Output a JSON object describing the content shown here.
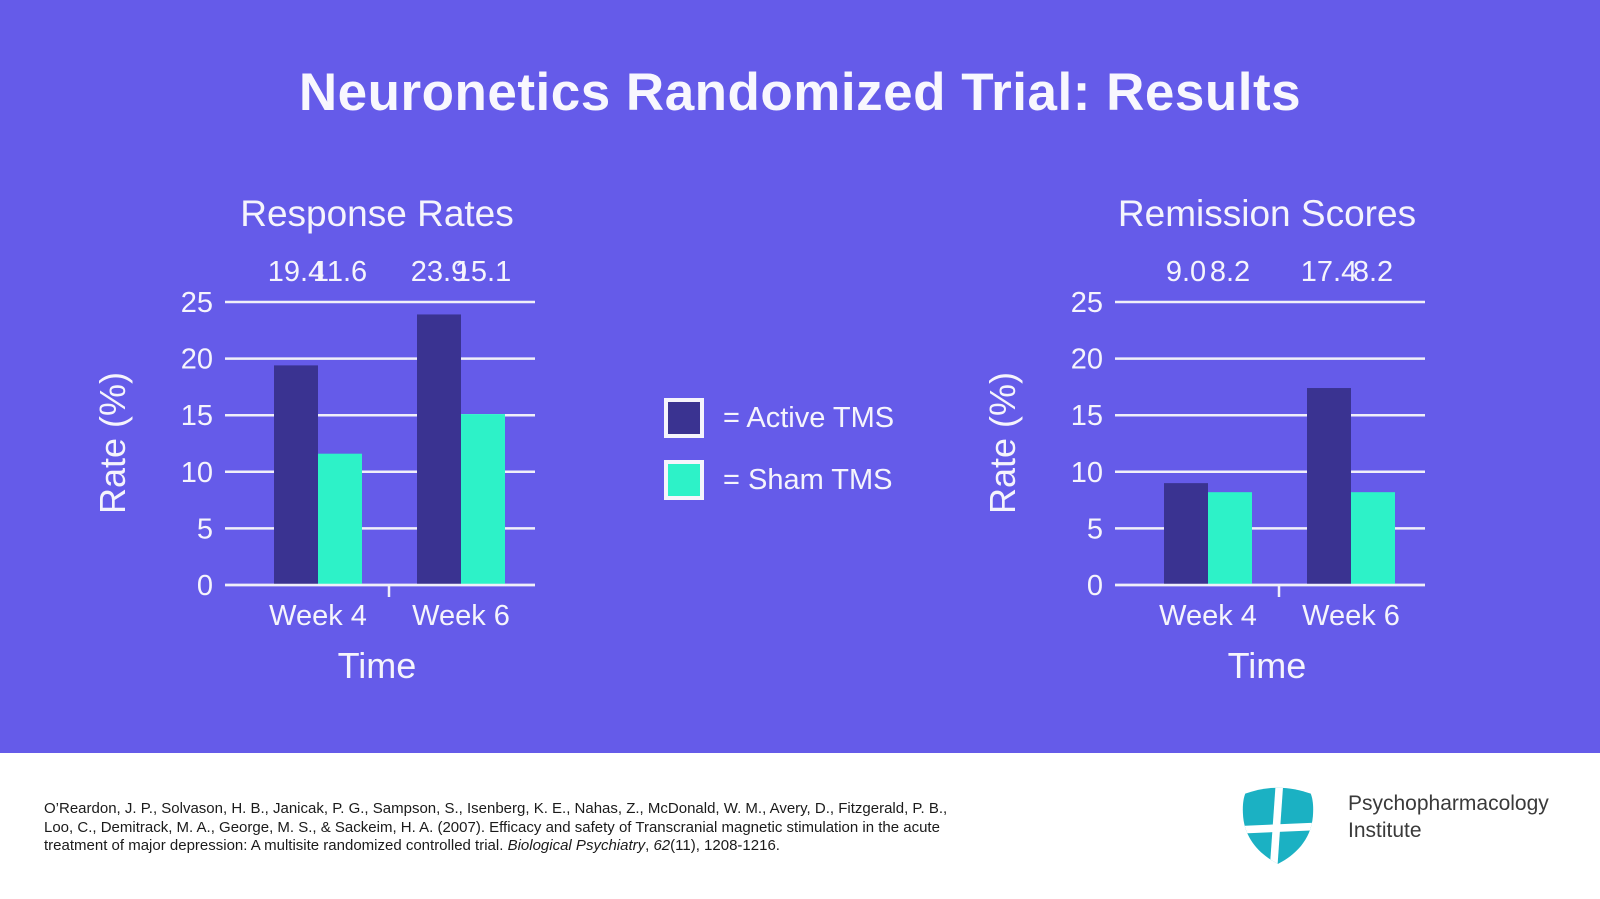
{
  "title": "Neuronetics Randomized Trial: Results",
  "colors": {
    "background": "#655BE9",
    "active_tms": "#3A3391",
    "sham_tms": "#2DF2C8",
    "chart_text": "#F5F4FC",
    "gridline": "#F0EFF9",
    "footer_background": "#FFFFFF",
    "citation_text": "#1B1B1B",
    "logo_teal": "#1BB1C3",
    "logo_text": "#3A3A3A"
  },
  "legend": {
    "items": [
      {
        "label": "= Active TMS",
        "swatch": "active_tms"
      },
      {
        "label": "= Sham TMS",
        "swatch": "sham_tms"
      }
    ]
  },
  "chart_data": [
    {
      "type": "bar",
      "title": "Response Rates",
      "xlabel": "Time",
      "ylabel": "Rate (%)",
      "categories": [
        "Week 4",
        "Week 6"
      ],
      "series": [
        {
          "name": "Active TMS",
          "values": [
            19.4,
            23.9
          ]
        },
        {
          "name": "Sham TMS",
          "values": [
            11.6,
            15.1
          ]
        }
      ],
      "value_labels": [
        "19.4",
        "11.6",
        "23.9",
        "15.1"
      ],
      "ylim": [
        0,
        25
      ],
      "yticks": [
        0,
        5,
        10,
        15,
        20,
        25
      ],
      "grid": true,
      "legend_position": "shared-center"
    },
    {
      "type": "bar",
      "title": "Remission Scores",
      "xlabel": "Time",
      "ylabel": "Rate (%)",
      "categories": [
        "Week 4",
        "Week 6"
      ],
      "series": [
        {
          "name": "Active TMS",
          "values": [
            9.0,
            17.4
          ]
        },
        {
          "name": "Sham TMS",
          "values": [
            8.2,
            8.2
          ]
        }
      ],
      "value_labels": [
        "9.0",
        "8.2",
        "17.4",
        "8.2"
      ],
      "ylim": [
        0,
        25
      ],
      "yticks": [
        0,
        5,
        10,
        15,
        20,
        25
      ],
      "grid": true,
      "legend_position": "shared-center"
    }
  ],
  "footer": {
    "citation_line1": "O’Reardon, J. P., Solvason, H. B., Janicak, P. G., Sampson, S., Isenberg, K. E., Nahas, Z., McDonald, W. M., Avery, D., Fitzgerald, P. B.,",
    "citation_line2": "Loo, C., Demitrack, M. A., George, M. S., & Sackeim, H. A. (2007). Efficacy and safety of Transcranial magnetic stimulation in the acute",
    "citation_line3_pre": "treatment of major depression: A multisite randomized controlled trial. ",
    "citation_line3_journal": "Biological Psychiatry",
    "citation_line3_sep": ", ",
    "citation_line3_volume": "62",
    "citation_line3_post": "(11), 1208-1216.",
    "logo_line1": "Psychopharmacology",
    "logo_line2": "Institute"
  }
}
